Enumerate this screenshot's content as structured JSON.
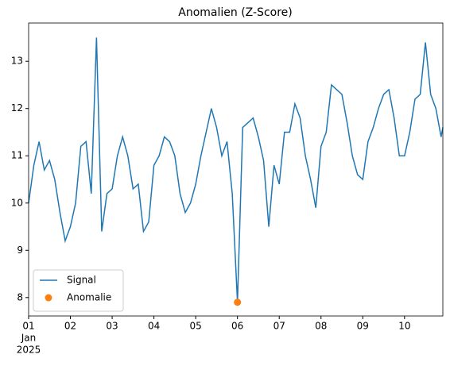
{
  "chart_data": {
    "type": "line",
    "title": "Anomalien (Z-Score)",
    "x": [
      "2025-01-01T00:00",
      "2025-01-01T03:00",
      "2025-01-01T06:00",
      "2025-01-01T09:00",
      "2025-01-01T12:00",
      "2025-01-01T15:00",
      "2025-01-01T18:00",
      "2025-01-01T21:00",
      "2025-01-02T00:00",
      "2025-01-02T03:00",
      "2025-01-02T06:00",
      "2025-01-02T09:00",
      "2025-01-02T12:00",
      "2025-01-02T15:00",
      "2025-01-02T18:00",
      "2025-01-02T21:00",
      "2025-01-03T00:00",
      "2025-01-03T03:00",
      "2025-01-03T06:00",
      "2025-01-03T09:00",
      "2025-01-03T12:00",
      "2025-01-03T15:00",
      "2025-01-03T18:00",
      "2025-01-03T21:00",
      "2025-01-04T00:00",
      "2025-01-04T03:00",
      "2025-01-04T06:00",
      "2025-01-04T09:00",
      "2025-01-04T12:00",
      "2025-01-04T15:00",
      "2025-01-04T18:00",
      "2025-01-04T21:00",
      "2025-01-05T00:00",
      "2025-01-05T03:00",
      "2025-01-05T06:00",
      "2025-01-05T09:00",
      "2025-01-05T12:00",
      "2025-01-05T15:00",
      "2025-01-05T18:00",
      "2025-01-05T21:00",
      "2025-01-06T00:00",
      "2025-01-06T03:00",
      "2025-01-06T06:00",
      "2025-01-06T09:00",
      "2025-01-06T12:00",
      "2025-01-06T15:00",
      "2025-01-06T18:00",
      "2025-01-06T21:00",
      "2025-01-07T00:00",
      "2025-01-07T03:00",
      "2025-01-07T06:00",
      "2025-01-07T09:00",
      "2025-01-07T12:00",
      "2025-01-07T15:00",
      "2025-01-07T18:00",
      "2025-01-07T21:00",
      "2025-01-08T00:00",
      "2025-01-08T03:00",
      "2025-01-08T06:00",
      "2025-01-08T09:00",
      "2025-01-08T12:00",
      "2025-01-08T15:00",
      "2025-01-08T18:00",
      "2025-01-08T21:00",
      "2025-01-09T00:00",
      "2025-01-09T03:00",
      "2025-01-09T06:00",
      "2025-01-09T09:00",
      "2025-01-09T12:00",
      "2025-01-09T15:00",
      "2025-01-09T18:00",
      "2025-01-09T21:00",
      "2025-01-10T00:00",
      "2025-01-10T03:00",
      "2025-01-10T06:00",
      "2025-01-10T09:00",
      "2025-01-10T12:00",
      "2025-01-10T15:00",
      "2025-01-10T18:00",
      "2025-01-10T21:00",
      "2025-01-10T22:00"
    ],
    "series": [
      {
        "name": "Signal",
        "color": "#1f77b4",
        "values": [
          10.0,
          10.8,
          11.3,
          10.7,
          10.9,
          10.5,
          9.8,
          9.2,
          9.5,
          10.0,
          11.2,
          11.3,
          10.2,
          13.5,
          9.4,
          10.2,
          10.3,
          11.0,
          11.4,
          11.0,
          10.3,
          10.4,
          9.4,
          9.6,
          10.8,
          11.0,
          11.4,
          11.3,
          11.0,
          10.2,
          9.8,
          10.0,
          10.4,
          11.0,
          11.5,
          12.0,
          11.6,
          11.0,
          11.3,
          10.2,
          7.9,
          11.6,
          11.7,
          11.8,
          11.4,
          10.9,
          9.5,
          10.8,
          10.4,
          11.5,
          11.5,
          12.1,
          11.8,
          11.0,
          10.5,
          9.9,
          11.2,
          11.5,
          12.5,
          12.4,
          12.3,
          11.7,
          11.0,
          10.6,
          10.5,
          11.3,
          11.6,
          12.0,
          12.3,
          12.4,
          11.8,
          11.0,
          11.0,
          11.5,
          12.2,
          12.3,
          13.4,
          12.3,
          12.0,
          11.4,
          11.6
        ]
      },
      {
        "name": "Anomalie",
        "color": "#ff7f0e",
        "type": "scatter",
        "x": [
          "2025-01-06T00:00"
        ],
        "values": [
          7.9
        ]
      }
    ],
    "xlim": [
      "2025-01-01T00:00",
      "2025-01-10T22:00"
    ],
    "xticks": [
      {
        "value": "2025-01-01T00:00",
        "label": "01"
      },
      {
        "value": "2025-01-02T00:00",
        "label": "02"
      },
      {
        "value": "2025-01-03T00:00",
        "label": "03"
      },
      {
        "value": "2025-01-04T00:00",
        "label": "04"
      },
      {
        "value": "2025-01-05T00:00",
        "label": "05"
      },
      {
        "value": "2025-01-06T00:00",
        "label": "06"
      },
      {
        "value": "2025-01-07T00:00",
        "label": "07"
      },
      {
        "value": "2025-01-08T00:00",
        "label": "08"
      },
      {
        "value": "2025-01-09T00:00",
        "label": "09"
      },
      {
        "value": "2025-01-10T00:00",
        "label": "10"
      }
    ],
    "x_tick_month": "Jan",
    "x_tick_year": "2025",
    "ylim": [
      7.61,
      13.81
    ],
    "yticks": [
      8,
      9,
      10,
      11,
      12,
      13
    ],
    "grid": false,
    "legend": "lower left"
  }
}
